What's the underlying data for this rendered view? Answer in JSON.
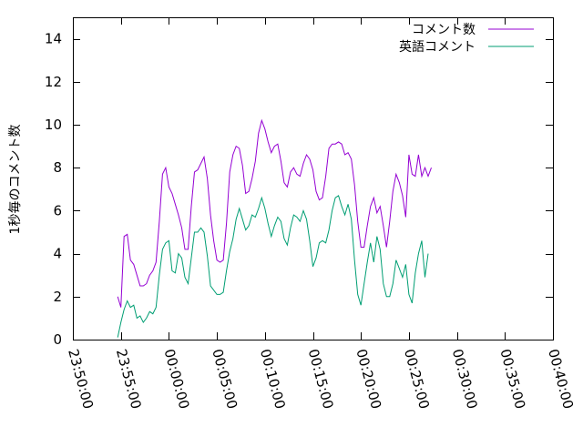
{
  "chart_data": {
    "type": "line",
    "title": "",
    "xlabel": "",
    "ylabel": "1秒毎のコメント数",
    "x_ticks": [
      "23:50:00",
      "23:55:00",
      "00:00:00",
      "00:05:00",
      "00:10:00",
      "00:15:00",
      "00:20:00",
      "00:25:00",
      "00:30:00",
      "00:35:00",
      "00:40:00"
    ],
    "xlim": [
      "23:50:00",
      "00:40:00"
    ],
    "ylim": [
      0,
      15
    ],
    "y_ticks": [
      0,
      2,
      4,
      6,
      8,
      10,
      12,
      14
    ],
    "grid": false,
    "legend_position": "top-right",
    "series": [
      {
        "name": "コメント数",
        "color": "#9400d3",
        "points": [
          [
            "23:54:40",
            2.0
          ],
          [
            "23:55:00",
            1.5
          ],
          [
            "23:55:20",
            4.8
          ],
          [
            "23:55:40",
            4.9
          ],
          [
            "23:56:00",
            3.7
          ],
          [
            "23:56:20",
            3.5
          ],
          [
            "23:56:40",
            3.0
          ],
          [
            "23:57:00",
            2.5
          ],
          [
            "23:57:20",
            2.5
          ],
          [
            "23:57:40",
            2.6
          ],
          [
            "23:58:00",
            3.0
          ],
          [
            "23:58:20",
            3.2
          ],
          [
            "23:58:40",
            3.6
          ],
          [
            "23:59:00",
            5.5
          ],
          [
            "23:59:20",
            7.7
          ],
          [
            "23:59:40",
            8.0
          ],
          [
            "00:00:00",
            7.1
          ],
          [
            "00:00:20",
            6.8
          ],
          [
            "00:00:40",
            6.3
          ],
          [
            "00:01:00",
            5.8
          ],
          [
            "00:01:20",
            5.2
          ],
          [
            "00:01:40",
            4.2
          ],
          [
            "00:02:00",
            4.2
          ],
          [
            "00:02:20",
            6.2
          ],
          [
            "00:02:40",
            7.8
          ],
          [
            "00:03:00",
            7.9
          ],
          [
            "00:03:20",
            8.2
          ],
          [
            "00:03:40",
            8.5
          ],
          [
            "00:04:00",
            7.5
          ],
          [
            "00:04:20",
            5.8
          ],
          [
            "00:04:40",
            4.6
          ],
          [
            "00:05:00",
            3.7
          ],
          [
            "00:05:20",
            3.6
          ],
          [
            "00:05:40",
            3.7
          ],
          [
            "00:06:00",
            5.4
          ],
          [
            "00:06:20",
            7.8
          ],
          [
            "00:06:40",
            8.6
          ],
          [
            "00:07:00",
            9.0
          ],
          [
            "00:07:20",
            8.9
          ],
          [
            "00:07:40",
            8.1
          ],
          [
            "00:08:00",
            6.8
          ],
          [
            "00:08:20",
            6.9
          ],
          [
            "00:08:40",
            7.5
          ],
          [
            "00:09:00",
            8.3
          ],
          [
            "00:09:20",
            9.6
          ],
          [
            "00:09:40",
            10.2
          ],
          [
            "00:10:00",
            9.8
          ],
          [
            "00:10:20",
            9.2
          ],
          [
            "00:10:40",
            8.7
          ],
          [
            "00:11:00",
            9.0
          ],
          [
            "00:11:20",
            9.1
          ],
          [
            "00:11:40",
            8.3
          ],
          [
            "00:12:00",
            7.3
          ],
          [
            "00:12:20",
            7.1
          ],
          [
            "00:12:40",
            7.8
          ],
          [
            "00:13:00",
            8.0
          ],
          [
            "00:13:20",
            7.7
          ],
          [
            "00:13:40",
            7.6
          ],
          [
            "00:14:00",
            8.2
          ],
          [
            "00:14:20",
            8.6
          ],
          [
            "00:14:40",
            8.4
          ],
          [
            "00:15:00",
            7.9
          ],
          [
            "00:15:20",
            6.9
          ],
          [
            "00:15:40",
            6.5
          ],
          [
            "00:16:00",
            6.6
          ],
          [
            "00:16:20",
            7.6
          ],
          [
            "00:16:40",
            8.9
          ],
          [
            "00:17:00",
            9.1
          ],
          [
            "00:17:20",
            9.1
          ],
          [
            "00:17:40",
            9.2
          ],
          [
            "00:18:00",
            9.1
          ],
          [
            "00:18:20",
            8.6
          ],
          [
            "00:18:40",
            8.7
          ],
          [
            "00:19:00",
            8.4
          ],
          [
            "00:19:20",
            7.2
          ],
          [
            "00:19:40",
            5.5
          ],
          [
            "00:20:00",
            4.3
          ],
          [
            "00:20:20",
            4.3
          ],
          [
            "00:20:40",
            5.3
          ],
          [
            "00:21:00",
            6.2
          ],
          [
            "00:21:20",
            6.6
          ],
          [
            "00:21:40",
            5.9
          ],
          [
            "00:22:00",
            6.2
          ],
          [
            "00:22:20",
            5.3
          ],
          [
            "00:22:40",
            4.3
          ],
          [
            "00:23:00",
            5.5
          ],
          [
            "00:23:20",
            6.9
          ],
          [
            "00:23:40",
            7.7
          ],
          [
            "00:24:00",
            7.3
          ],
          [
            "00:24:20",
            6.7
          ],
          [
            "00:24:40",
            5.7
          ],
          [
            "00:25:00",
            8.6
          ],
          [
            "00:25:20",
            7.7
          ],
          [
            "00:25:40",
            7.6
          ],
          [
            "00:26:00",
            8.6
          ],
          [
            "00:26:20",
            7.6
          ],
          [
            "00:26:40",
            8.0
          ],
          [
            "00:27:00",
            7.6
          ],
          [
            "00:27:20",
            8.0
          ]
        ]
      },
      {
        "name": "英語コメント",
        "color": "#009e73",
        "points": [
          [
            "23:54:40",
            0.1
          ],
          [
            "23:55:00",
            0.8
          ],
          [
            "23:55:20",
            1.4
          ],
          [
            "23:55:40",
            1.8
          ],
          [
            "23:56:00",
            1.5
          ],
          [
            "23:56:20",
            1.6
          ],
          [
            "23:56:40",
            1.0
          ],
          [
            "23:57:00",
            1.1
          ],
          [
            "23:57:20",
            0.8
          ],
          [
            "23:57:40",
            1.0
          ],
          [
            "23:58:00",
            1.3
          ],
          [
            "23:58:20",
            1.2
          ],
          [
            "23:58:40",
            1.5
          ],
          [
            "23:59:00",
            3.0
          ],
          [
            "23:59:20",
            4.2
          ],
          [
            "23:59:40",
            4.5
          ],
          [
            "00:00:00",
            4.6
          ],
          [
            "00:00:20",
            3.2
          ],
          [
            "00:00:40",
            3.1
          ],
          [
            "00:01:00",
            4.0
          ],
          [
            "00:01:20",
            3.8
          ],
          [
            "00:01:40",
            2.9
          ],
          [
            "00:02:00",
            2.6
          ],
          [
            "00:02:20",
            3.8
          ],
          [
            "00:02:40",
            5.0
          ],
          [
            "00:03:00",
            5.0
          ],
          [
            "00:03:20",
            5.2
          ],
          [
            "00:03:40",
            5.0
          ],
          [
            "00:04:00",
            3.9
          ],
          [
            "00:04:20",
            2.5
          ],
          [
            "00:04:40",
            2.3
          ],
          [
            "00:05:00",
            2.1
          ],
          [
            "00:05:20",
            2.1
          ],
          [
            "00:05:40",
            2.2
          ],
          [
            "00:06:00",
            3.2
          ],
          [
            "00:06:20",
            4.1
          ],
          [
            "00:06:40",
            4.7
          ],
          [
            "00:07:00",
            5.6
          ],
          [
            "00:07:20",
            6.1
          ],
          [
            "00:07:40",
            5.6
          ],
          [
            "00:08:00",
            5.1
          ],
          [
            "00:08:20",
            5.3
          ],
          [
            "00:08:40",
            5.8
          ],
          [
            "00:09:00",
            5.7
          ],
          [
            "00:09:20",
            6.1
          ],
          [
            "00:09:40",
            6.6
          ],
          [
            "00:10:00",
            6.1
          ],
          [
            "00:10:20",
            5.4
          ],
          [
            "00:10:40",
            4.8
          ],
          [
            "00:11:00",
            5.3
          ],
          [
            "00:11:20",
            5.7
          ],
          [
            "00:11:40",
            5.5
          ],
          [
            "00:12:00",
            4.7
          ],
          [
            "00:12:20",
            4.4
          ],
          [
            "00:12:40",
            5.2
          ],
          [
            "00:13:00",
            5.8
          ],
          [
            "00:13:20",
            5.7
          ],
          [
            "00:13:40",
            5.5
          ],
          [
            "00:14:00",
            6.0
          ],
          [
            "00:14:20",
            5.6
          ],
          [
            "00:14:40",
            4.6
          ],
          [
            "00:15:00",
            3.4
          ],
          [
            "00:15:20",
            3.8
          ],
          [
            "00:15:40",
            4.5
          ],
          [
            "00:16:00",
            4.6
          ],
          [
            "00:16:20",
            4.5
          ],
          [
            "00:16:40",
            5.1
          ],
          [
            "00:17:00",
            6.0
          ],
          [
            "00:17:20",
            6.6
          ],
          [
            "00:17:40",
            6.7
          ],
          [
            "00:18:00",
            6.2
          ],
          [
            "00:18:20",
            5.8
          ],
          [
            "00:18:40",
            6.3
          ],
          [
            "00:19:00",
            5.6
          ],
          [
            "00:19:20",
            3.7
          ],
          [
            "00:19:40",
            2.1
          ],
          [
            "00:20:00",
            1.6
          ],
          [
            "00:20:20",
            2.6
          ],
          [
            "00:20:40",
            3.6
          ],
          [
            "00:21:00",
            4.5
          ],
          [
            "00:21:20",
            3.6
          ],
          [
            "00:21:40",
            4.8
          ],
          [
            "00:22:00",
            4.2
          ],
          [
            "00:22:20",
            2.6
          ],
          [
            "00:22:40",
            2.0
          ],
          [
            "00:23:00",
            2.0
          ],
          [
            "00:23:20",
            2.6
          ],
          [
            "00:23:40",
            3.7
          ],
          [
            "00:24:00",
            3.3
          ],
          [
            "00:24:20",
            2.9
          ],
          [
            "00:24:40",
            3.5
          ],
          [
            "00:25:00",
            2.1
          ],
          [
            "00:25:20",
            1.7
          ],
          [
            "00:25:40",
            3.1
          ],
          [
            "00:26:00",
            4.0
          ],
          [
            "00:26:20",
            4.6
          ],
          [
            "00:26:40",
            2.9
          ],
          [
            "00:27:00",
            4.0
          ]
        ]
      }
    ]
  }
}
